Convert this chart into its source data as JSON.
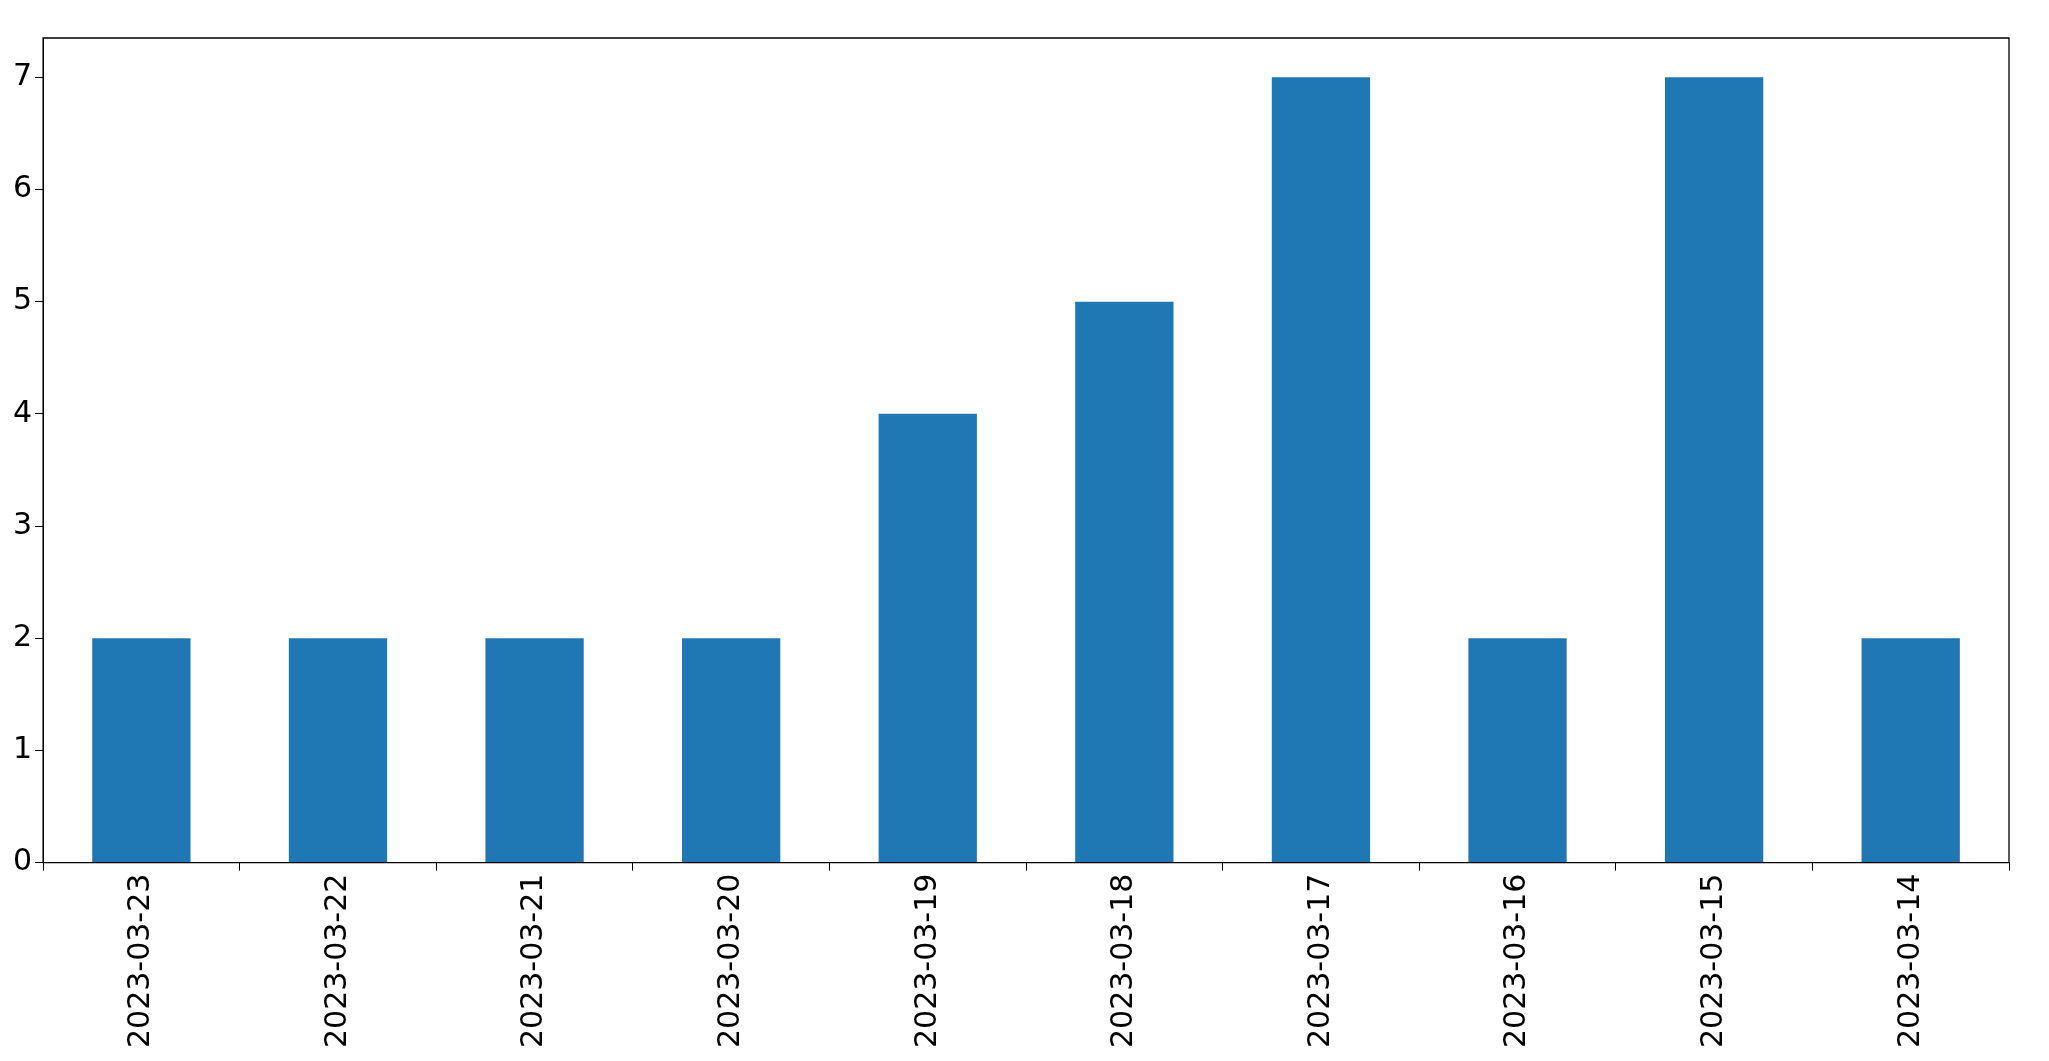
{
  "chart_data": {
    "type": "bar",
    "categories": [
      "2023-03-23",
      "2023-03-22",
      "2023-03-21",
      "2023-03-20",
      "2023-03-19",
      "2023-03-18",
      "2023-03-17",
      "2023-03-16",
      "2023-03-15",
      "2023-03-14"
    ],
    "values": [
      2,
      2,
      2,
      2,
      4,
      5,
      7,
      2,
      7,
      2
    ],
    "color": "#1f77b4",
    "ylim": [
      0,
      7.35
    ],
    "yticks": [
      0,
      1,
      2,
      3,
      4,
      5,
      6,
      7
    ]
  }
}
